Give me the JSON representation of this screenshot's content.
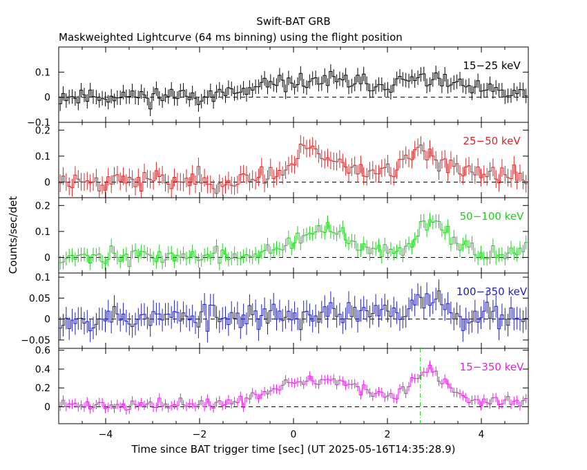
{
  "title": "Swift-BAT GRB",
  "subtitle": "Maskweighted Lightcurve (64 ms binning) using the flight position",
  "ylabel": "Counts/sec/det",
  "xlabel": "Time since BAT trigger time [sec] (UT 2025-05-16T14:35:28.9)",
  "chart_data": {
    "type": "line",
    "x_range": [
      -5,
      5
    ],
    "x_ticks": [
      -4,
      -2,
      0,
      2,
      4
    ],
    "x_tick_labels": [
      "−4",
      "−2",
      "0",
      "2",
      "4"
    ],
    "bin_width_s": 0.064,
    "dotted_line_value": 0,
    "marker_line_time_s": 2.7,
    "panels": [
      {
        "label": "15−25 keV",
        "color": "#000000",
        "ylim": [
          -0.1,
          0.2
        ],
        "yticks": [
          -0.1,
          0,
          0.1
        ],
        "ytick_labels": [
          "−0.1",
          "0",
          "0.1"
        ],
        "baseline": 0.015,
        "noise": 0.032,
        "peaks": [
          [
            0.6,
            0.05,
            1.1
          ],
          [
            2.9,
            0.05,
            0.6
          ]
        ],
        "seed": 11
      },
      {
        "label": "25−50 keV",
        "color": "#d62728",
        "ylim": [
          -0.06,
          0.23
        ],
        "yticks": [
          0,
          0.1,
          0.2
        ],
        "ytick_labels": [
          "0",
          "0.1",
          "0.2"
        ],
        "baseline": 0.02,
        "noise": 0.038,
        "peaks": [
          [
            0.3,
            0.1,
            0.15
          ],
          [
            0.7,
            0.06,
            0.6
          ],
          [
            2.8,
            0.09,
            0.5
          ]
        ],
        "seed": 23
      },
      {
        "label": "50−100 keV",
        "color": "#22cc22",
        "ylim": [
          -0.06,
          0.23
        ],
        "yticks": [
          0,
          0.1,
          0.2
        ],
        "ytick_labels": [
          "0",
          "0.1",
          "0.2"
        ],
        "baseline": 0.015,
        "noise": 0.03,
        "peaks": [
          [
            0.6,
            0.09,
            0.5
          ],
          [
            3.0,
            0.13,
            0.35
          ]
        ],
        "seed": 37
      },
      {
        "label": "100−350 keV",
        "color": "#1f1fbf",
        "ylim": [
          -0.07,
          0.11
        ],
        "yticks": [
          -0.05,
          0,
          0.05,
          0.1
        ],
        "ytick_labels": [
          "−0.05",
          "0",
          "0.05",
          "0.1"
        ],
        "baseline": 0.01,
        "noise": 0.03,
        "peaks": [
          [
            2.9,
            0.045,
            0.3
          ]
        ],
        "seed": 53
      },
      {
        "label": "15−350 keV",
        "color": "#dd22dd",
        "ylim": [
          -0.18,
          0.62
        ],
        "yticks": [
          0,
          0.2,
          0.4,
          0.6
        ],
        "ytick_labels": [
          "0",
          "0.2",
          "0.4",
          "0.6"
        ],
        "baseline": 0.06,
        "noise": 0.055,
        "peaks": [
          [
            0.5,
            0.22,
            0.9
          ],
          [
            2.9,
            0.3,
            0.35
          ]
        ],
        "seed": 71
      }
    ]
  }
}
